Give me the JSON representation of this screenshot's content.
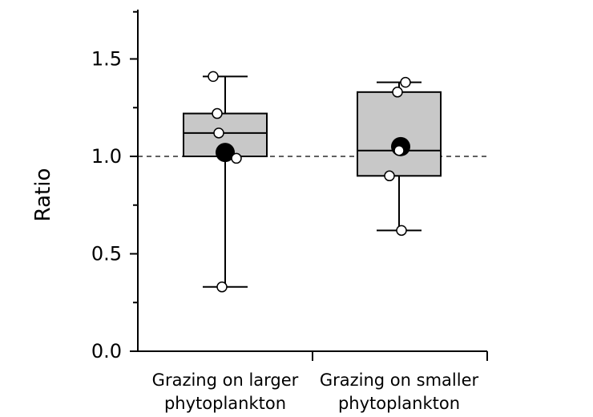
{
  "chart_data": {
    "type": "box",
    "ylabel": "Ratio",
    "ylim": [
      0,
      1.75
    ],
    "yticks": [
      "0.0",
      "0.5",
      "1.0",
      "1.5"
    ],
    "reference_line": 1.0,
    "groups": [
      {
        "label_line1": "Grazing on larger",
        "label_line2": "phytoplankton",
        "whisker_low": 0.33,
        "q1": 1.0,
        "median": 1.12,
        "q3": 1.22,
        "whisker_high": 1.41,
        "mean": 1.02,
        "points": [
          1.41,
          1.22,
          1.12,
          0.99,
          0.33
        ]
      },
      {
        "label_line1": "Grazing on smaller",
        "label_line2": "phytoplankton",
        "whisker_low": 0.62,
        "q1": 0.9,
        "median": 1.03,
        "q3": 1.33,
        "whisker_high": 1.38,
        "mean": 1.05,
        "points": [
          1.38,
          1.33,
          1.03,
          0.9,
          0.62
        ]
      }
    ],
    "colors": {
      "box_fill": "#c8c8c8",
      "stroke": "#000000",
      "point_fill": "#ffffff",
      "mean_fill": "#000000"
    }
  }
}
